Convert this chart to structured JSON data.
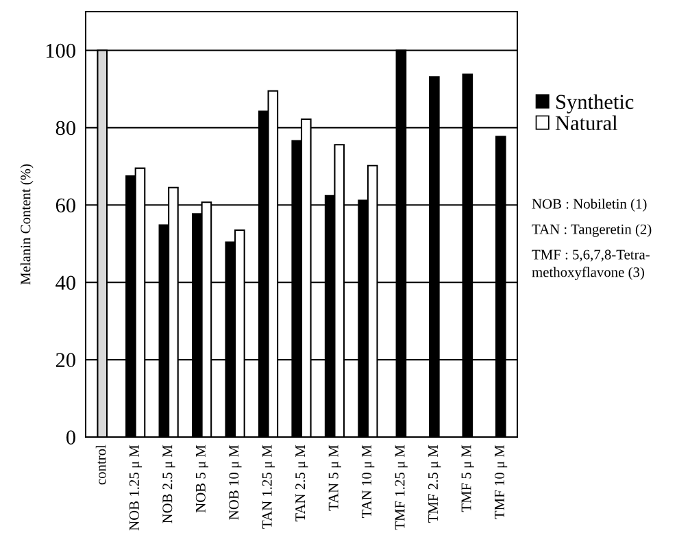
{
  "chart_data": {
    "type": "bar",
    "ylabel": "Melanin Content (%)",
    "categories": [
      "control",
      "NOB 1.25 μ M",
      "NOB 2.5 μ M",
      "NOB 5 μ M",
      "NOB 10 μ M",
      "TAN 1.25 μ M",
      "TAN 2.5 μ M",
      "TAN 5 μ M",
      "TAN 10 μ M",
      "TMF 1.25 μ M",
      "TMF 2.5 μ M",
      "TMF 5 μ M",
      "TMF 10 μ M"
    ],
    "series": [
      {
        "color": "#d9d9d9",
        "values": [
          100,
          null,
          null,
          null,
          null,
          null,
          null,
          null,
          null,
          null,
          null,
          null,
          null
        ]
      },
      {
        "name": "Synthetic",
        "color": "#000000",
        "values": [
          null,
          67.5,
          54.8,
          57.7,
          50.4,
          84.2,
          76.6,
          62.4,
          61.2,
          100,
          93.1,
          93.8,
          77.7
        ]
      },
      {
        "name": "Natural",
        "color": "#ffffff",
        "values": [
          null,
          69.5,
          64.5,
          60.7,
          53.5,
          89.5,
          82.2,
          75.6,
          70.2,
          null,
          null,
          null,
          null
        ]
      }
    ],
    "ylim": [
      0,
      110
    ],
    "yticks": [
      0,
      20,
      40,
      60,
      80,
      100
    ],
    "grid": "y",
    "legend": "right",
    "annotations": [
      "NOB : Nobiletin (1)",
      "TAN : Tangeretin (2)",
      "TMF : 5,6,7,8-Tetra-\nmethoxyflavone (3)"
    ]
  }
}
